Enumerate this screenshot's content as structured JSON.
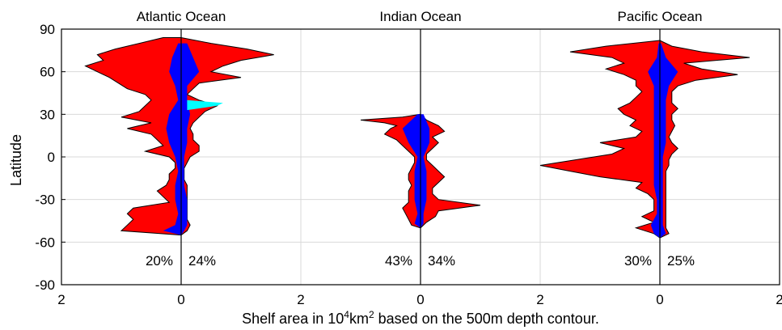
{
  "chart_data": {
    "type": "area",
    "ylabel": "Latitude",
    "xlabel_parts": [
      "Shelf area in 10",
      "4",
      "km",
      "2",
      " based on the 500m depth contour."
    ],
    "yticks": [
      "90",
      "60",
      "30",
      "0",
      "-30",
      "-60",
      "-90"
    ],
    "ytick_values": [
      90,
      60,
      30,
      0,
      -30,
      -60,
      -90
    ],
    "ylim": [
      -90,
      90
    ],
    "xticks": [
      "2",
      "0",
      "2",
      "0",
      "2",
      "0",
      "2"
    ],
    "grid": true,
    "colors": {
      "left_side": "#ff0000",
      "right_side": "#ff0000",
      "inner_core": "#0000ff",
      "highlight": "#00ffff",
      "outline": "#000000"
    },
    "panels": [
      {
        "title": "Atlantic Ocean",
        "xlim": [
          -2,
          2
        ],
        "left_percent": "20%",
        "right_percent": "24%",
        "profile_left": [
          [
            84,
            0.3
          ],
          [
            80,
            0.7
          ],
          [
            76,
            1.1
          ],
          [
            72,
            1.4
          ],
          [
            68,
            1.3
          ],
          [
            64,
            1.6
          ],
          [
            60,
            1.4
          ],
          [
            56,
            1.2
          ],
          [
            52,
            1.05
          ],
          [
            48,
            0.9
          ],
          [
            44,
            0.6
          ],
          [
            40,
            0.5
          ],
          [
            36,
            0.6
          ],
          [
            32,
            0.7
          ],
          [
            28,
            1.0
          ],
          [
            24,
            0.5
          ],
          [
            20,
            0.9
          ],
          [
            16,
            0.5
          ],
          [
            12,
            0.4
          ],
          [
            8,
            0.3
          ],
          [
            4,
            0.6
          ],
          [
            0,
            0.2
          ],
          [
            -4,
            0.1
          ],
          [
            -8,
            0.1
          ],
          [
            -12,
            0.2
          ],
          [
            -16,
            0.2
          ],
          [
            -20,
            0.25
          ],
          [
            -24,
            0.4
          ],
          [
            -28,
            0.3
          ],
          [
            -32,
            0.2
          ],
          [
            -36,
            0.8
          ],
          [
            -40,
            0.9
          ],
          [
            -44,
            0.8
          ],
          [
            -48,
            0.9
          ],
          [
            -52,
            1.0
          ],
          [
            -55,
            0.0
          ]
        ],
        "profile_right": [
          [
            84,
            0.0
          ],
          [
            80,
            0.5
          ],
          [
            76,
            1.1
          ],
          [
            72,
            1.55
          ],
          [
            68,
            1.0
          ],
          [
            64,
            0.7
          ],
          [
            60,
            0.5
          ],
          [
            56,
            1.0
          ],
          [
            52,
            0.3
          ],
          [
            48,
            0.2
          ],
          [
            44,
            0.1
          ],
          [
            40,
            0.3
          ],
          [
            36,
            0.6
          ],
          [
            32,
            0.4
          ],
          [
            28,
            0.3
          ],
          [
            24,
            0.2
          ],
          [
            20,
            0.15
          ],
          [
            16,
            0.2
          ],
          [
            12,
            0.2
          ],
          [
            8,
            0.3
          ],
          [
            4,
            0.3
          ],
          [
            0,
            0.15
          ],
          [
            -4,
            0.1
          ],
          [
            -8,
            0.05
          ],
          [
            -12,
            0.05
          ],
          [
            -16,
            0.05
          ],
          [
            -20,
            0.1
          ],
          [
            -24,
            0.1
          ],
          [
            -28,
            0.1
          ],
          [
            -32,
            0.1
          ],
          [
            -36,
            0.1
          ],
          [
            -40,
            0.1
          ],
          [
            -44,
            0.1
          ],
          [
            -48,
            0.15
          ],
          [
            -52,
            0.1
          ],
          [
            -55,
            0.0
          ]
        ],
        "inner": [
          [
            80,
            0.05,
            0.1
          ],
          [
            70,
            0.15,
            0.2
          ],
          [
            60,
            0.2,
            0.3
          ],
          [
            50,
            0.1,
            0.1
          ],
          [
            40,
            0.05,
            0.1
          ],
          [
            30,
            0.2,
            0.15
          ],
          [
            20,
            0.25,
            0.1
          ],
          [
            10,
            0.2,
            0.1
          ],
          [
            0,
            0.1,
            0.05
          ],
          [
            -10,
            0.05,
            0.05
          ],
          [
            -20,
            0.1,
            0.05
          ],
          [
            -30,
            0.1,
            0.1
          ],
          [
            -40,
            0.05,
            0.1
          ],
          [
            -48,
            0.1,
            0.1
          ],
          [
            -52,
            0.3,
            0.05
          ],
          [
            -55,
            0.0,
            0.0
          ]
        ]
      },
      {
        "title": "Indian Ocean",
        "xlim": [
          -2,
          2
        ],
        "left_percent": "43%",
        "right_percent": "34%",
        "profile_left": [
          [
            30,
            0.0
          ],
          [
            28,
            0.3
          ],
          [
            26,
            1.0
          ],
          [
            24,
            0.6
          ],
          [
            22,
            0.4
          ],
          [
            20,
            0.5
          ],
          [
            16,
            0.6
          ],
          [
            12,
            0.4
          ],
          [
            8,
            0.3
          ],
          [
            4,
            0.2
          ],
          [
            0,
            0.1
          ],
          [
            -4,
            0.1
          ],
          [
            -8,
            0.15
          ],
          [
            -12,
            0.2
          ],
          [
            -16,
            0.2
          ],
          [
            -20,
            0.15
          ],
          [
            -24,
            0.2
          ],
          [
            -28,
            0.2
          ],
          [
            -32,
            0.2
          ],
          [
            -36,
            0.3
          ],
          [
            -40,
            0.25
          ],
          [
            -44,
            0.2
          ],
          [
            -48,
            0.15
          ],
          [
            -50,
            0.0
          ]
        ],
        "profile_right": [
          [
            30,
            0.0
          ],
          [
            26,
            0.1
          ],
          [
            22,
            0.3
          ],
          [
            18,
            0.4
          ],
          [
            14,
            0.2
          ],
          [
            10,
            0.3
          ],
          [
            6,
            0.2
          ],
          [
            2,
            0.1
          ],
          [
            -2,
            0.1
          ],
          [
            -6,
            0.2
          ],
          [
            -10,
            0.3
          ],
          [
            -14,
            0.4
          ],
          [
            -18,
            0.3
          ],
          [
            -22,
            0.2
          ],
          [
            -26,
            0.2
          ],
          [
            -30,
            0.3
          ],
          [
            -34,
            1.0
          ],
          [
            -38,
            0.3
          ],
          [
            -42,
            0.25
          ],
          [
            -46,
            0.1
          ],
          [
            -50,
            0.0
          ]
        ],
        "inner": [
          [
            30,
            0.05,
            0.05
          ],
          [
            20,
            0.3,
            0.15
          ],
          [
            10,
            0.2,
            0.15
          ],
          [
            0,
            0.05,
            0.05
          ],
          [
            -10,
            0.1,
            0.1
          ],
          [
            -20,
            0.1,
            0.1
          ],
          [
            -30,
            0.1,
            0.1
          ],
          [
            -40,
            0.05,
            0.05
          ],
          [
            -47,
            0.1,
            0.05
          ],
          [
            -50,
            0.0,
            0.0
          ]
        ]
      },
      {
        "title": "Pacific Ocean",
        "xlim": [
          -2,
          2
        ],
        "left_percent": "30%",
        "right_percent": "25%",
        "profile_left": [
          [
            82,
            0.0
          ],
          [
            78,
            0.9
          ],
          [
            74,
            1.5
          ],
          [
            70,
            0.8
          ],
          [
            66,
            0.6
          ],
          [
            62,
            0.9
          ],
          [
            58,
            0.6
          ],
          [
            54,
            0.4
          ],
          [
            50,
            0.4
          ],
          [
            46,
            0.3
          ],
          [
            42,
            0.4
          ],
          [
            38,
            0.5
          ],
          [
            34,
            0.7
          ],
          [
            30,
            0.6
          ],
          [
            26,
            0.4
          ],
          [
            22,
            0.5
          ],
          [
            18,
            0.3
          ],
          [
            14,
            0.4
          ],
          [
            10,
            1.0
          ],
          [
            6,
            0.6
          ],
          [
            2,
            0.8
          ],
          [
            -2,
            1.4
          ],
          [
            -6,
            2.0
          ],
          [
            -10,
            1.5
          ],
          [
            -14,
            1.0
          ],
          [
            -18,
            0.3
          ],
          [
            -22,
            0.4
          ],
          [
            -26,
            0.2
          ],
          [
            -30,
            0.1
          ],
          [
            -34,
            0.1
          ],
          [
            -38,
            0.1
          ],
          [
            -42,
            0.3
          ],
          [
            -46,
            0.1
          ],
          [
            -50,
            0.4
          ],
          [
            -54,
            0.1
          ],
          [
            -57,
            0.0
          ]
        ],
        "profile_right": [
          [
            82,
            0.0
          ],
          [
            78,
            0.2
          ],
          [
            74,
            0.7
          ],
          [
            70,
            1.5
          ],
          [
            66,
            0.4
          ],
          [
            62,
            0.7
          ],
          [
            58,
            1.3
          ],
          [
            54,
            0.6
          ],
          [
            50,
            0.3
          ],
          [
            46,
            0.2
          ],
          [
            42,
            0.2
          ],
          [
            38,
            0.2
          ],
          [
            34,
            0.3
          ],
          [
            30,
            0.2
          ],
          [
            26,
            0.2
          ],
          [
            22,
            0.25
          ],
          [
            18,
            0.2
          ],
          [
            14,
            0.15
          ],
          [
            10,
            0.2
          ],
          [
            6,
            0.3
          ],
          [
            2,
            0.2
          ],
          [
            -2,
            0.15
          ],
          [
            -6,
            0.15
          ],
          [
            -10,
            0.1
          ],
          [
            -14,
            0.1
          ],
          [
            -18,
            0.1
          ],
          [
            -22,
            0.1
          ],
          [
            -26,
            0.1
          ],
          [
            -30,
            0.1
          ],
          [
            -34,
            0.1
          ],
          [
            -38,
            0.1
          ],
          [
            -42,
            0.1
          ],
          [
            -46,
            0.1
          ],
          [
            -50,
            0.1
          ],
          [
            -54,
            0.15
          ],
          [
            -57,
            0.0
          ]
        ],
        "inner": [
          [
            80,
            0.02,
            0.02
          ],
          [
            70,
            0.05,
            0.1
          ],
          [
            60,
            0.2,
            0.3
          ],
          [
            50,
            0.1,
            0.15
          ],
          [
            40,
            0.1,
            0.1
          ],
          [
            30,
            0.1,
            0.1
          ],
          [
            20,
            0.1,
            0.1
          ],
          [
            10,
            0.1,
            0.1
          ],
          [
            0,
            0.1,
            0.05
          ],
          [
            -10,
            0.1,
            0.05
          ],
          [
            -20,
            0.1,
            0.05
          ],
          [
            -30,
            0.05,
            0.05
          ],
          [
            -40,
            0.05,
            0.05
          ],
          [
            -48,
            0.15,
            0.05
          ],
          [
            -54,
            0.1,
            0.1
          ],
          [
            -57,
            0.0,
            0.0
          ]
        ]
      }
    ]
  }
}
